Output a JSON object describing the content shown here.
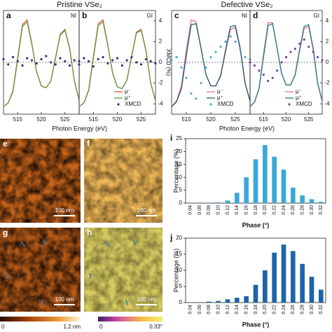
{
  "groups": [
    {
      "title": "Pristine VSe₂",
      "x_label": "Photon Energy (eV)",
      "y2_label": "XMCD (%)"
    },
    {
      "title": "Defective VSe₂",
      "x_label": "Photon Energy (eV)"
    }
  ],
  "chart_data": [
    {
      "type": "line",
      "label": "a",
      "tag": "NI",
      "x": [
        512,
        513,
        514,
        515,
        516,
        517,
        518,
        519,
        520,
        521,
        522,
        523,
        524,
        525,
        526,
        527,
        528
      ],
      "xlim": [
        512,
        528
      ],
      "xticks": [
        515,
        520,
        525
      ],
      "ylim": [
        0,
        1.1
      ],
      "y2lim": [
        -5,
        5
      ],
      "series": [
        {
          "color": "#e8553a",
          "values": [
            0.08,
            0.12,
            0.25,
            0.6,
            0.95,
            1.0,
            0.75,
            0.45,
            0.3,
            0.28,
            0.35,
            0.6,
            0.85,
            0.9,
            0.7,
            0.35,
            0.15
          ]
        },
        {
          "color": "#5a9e3a",
          "values": [
            0.08,
            0.12,
            0.24,
            0.58,
            0.93,
            0.98,
            0.74,
            0.45,
            0.3,
            0.28,
            0.35,
            0.59,
            0.84,
            0.89,
            0.69,
            0.35,
            0.15
          ]
        },
        {
          "color": "#2b2f7a",
          "axis": "y2",
          "values": [
            0.3,
            -0.2,
            0.5,
            0.1,
            -0.3,
            0.4,
            0.2,
            -0.1,
            0.3,
            0.6,
            0.0,
            -0.2,
            0.4,
            0.1,
            -0.3,
            0.2,
            0.1
          ]
        }
      ]
    },
    {
      "type": "line",
      "label": "b",
      "tag": "GI",
      "x": [
        512,
        513,
        514,
        515,
        516,
        517,
        518,
        519,
        520,
        521,
        522,
        523,
        524,
        525,
        526,
        527,
        528
      ],
      "xlim": [
        512,
        528
      ],
      "xticks": [
        515,
        520,
        525
      ],
      "ylim": [
        0,
        1.1
      ],
      "y2lim": [
        -5,
        5
      ],
      "y2ticks": [
        -4,
        -2,
        0,
        2,
        4
      ],
      "series": [
        {
          "name": "μ⁻",
          "color": "#e8553a",
          "values": [
            0.08,
            0.12,
            0.26,
            0.62,
            0.96,
            1.0,
            0.74,
            0.44,
            0.29,
            0.27,
            0.36,
            0.62,
            0.87,
            0.9,
            0.68,
            0.33,
            0.14
          ]
        },
        {
          "name": "μ⁺",
          "color": "#5a9e3a",
          "values": [
            0.08,
            0.12,
            0.25,
            0.6,
            0.94,
            0.98,
            0.73,
            0.44,
            0.29,
            0.27,
            0.36,
            0.61,
            0.86,
            0.89,
            0.67,
            0.33,
            0.14
          ]
        },
        {
          "name": "XMCD",
          "color": "#2b2f7a",
          "axis": "y2",
          "values": [
            -0.2,
            0.4,
            0.1,
            -0.4,
            0.3,
            0.5,
            -0.1,
            0.2,
            0.4,
            -0.3,
            0.2,
            0.5,
            0.0,
            -0.2,
            0.3,
            0.1,
            -0.1
          ]
        }
      ]
    },
    {
      "type": "line",
      "label": "c",
      "tag": "NI",
      "x": [
        512,
        513,
        514,
        515,
        516,
        517,
        518,
        519,
        520,
        521,
        522,
        523,
        524,
        525,
        526,
        527,
        528
      ],
      "xlim": [
        512,
        528
      ],
      "xticks": [
        515,
        520,
        525
      ],
      "ylim": [
        0,
        1.1
      ],
      "y2lim": [
        -5,
        5
      ],
      "series": [
        {
          "name": "μ⁻",
          "color": "#e86fa8",
          "values": [
            0.08,
            0.14,
            0.3,
            0.68,
            1.0,
            0.98,
            0.7,
            0.42,
            0.3,
            0.3,
            0.4,
            0.66,
            0.9,
            0.92,
            0.68,
            0.32,
            0.14
          ]
        },
        {
          "name": "μ⁺",
          "color": "#1f5f63",
          "values": [
            0.08,
            0.13,
            0.27,
            0.62,
            0.95,
            0.96,
            0.7,
            0.42,
            0.3,
            0.3,
            0.41,
            0.68,
            0.93,
            0.94,
            0.7,
            0.33,
            0.14
          ]
        },
        {
          "name": "XMCD",
          "color": "#4aa8d8",
          "axis": "y2",
          "values": [
            0.2,
            0.5,
            -0.5,
            -1.5,
            -3,
            -3.5,
            -2,
            -0.5,
            0.5,
            1,
            1.5,
            2,
            2.5,
            2,
            1.2,
            0.5,
            0.3
          ]
        }
      ]
    },
    {
      "type": "line",
      "label": "d",
      "tag": "GI",
      "x": [
        512,
        513,
        514,
        515,
        516,
        517,
        518,
        519,
        520,
        521,
        522,
        523,
        524,
        525,
        526,
        527,
        528
      ],
      "xlim": [
        512,
        528
      ],
      "xticks": [
        515,
        520,
        525
      ],
      "ylim": [
        0,
        1.1
      ],
      "y2lim": [
        -5,
        5
      ],
      "y2ticks": [
        -4,
        -2,
        0,
        2,
        4
      ],
      "series": [
        {
          "name": "μ⁻",
          "color": "#e86fa8",
          "values": [
            0.08,
            0.13,
            0.28,
            0.64,
            0.97,
            0.97,
            0.7,
            0.43,
            0.31,
            0.31,
            0.41,
            0.67,
            0.91,
            0.93,
            0.68,
            0.32,
            0.14
          ]
        },
        {
          "name": "μ⁺",
          "color": "#1f7f80",
          "values": [
            0.08,
            0.13,
            0.27,
            0.61,
            0.94,
            0.96,
            0.7,
            0.43,
            0.31,
            0.31,
            0.42,
            0.69,
            0.93,
            0.95,
            0.7,
            0.33,
            0.14
          ]
        },
        {
          "name": "XMCD",
          "color": "#7a3fa0",
          "axis": "y2",
          "values": [
            0,
            -0.3,
            -0.8,
            -1.2,
            -1.8,
            -1.5,
            -0.8,
            0,
            0.5,
            1,
            1.3,
            1.8,
            2.2,
            1.5,
            1,
            0.5,
            0.2
          ]
        }
      ]
    },
    {
      "type": "bar",
      "label": "i",
      "color": "#3aa9d6",
      "x_label": "Phase (°)",
      "y_label": "Percentage (%)",
      "categories": [
        "0.04",
        "0.06",
        "0.08",
        "0.10",
        "0.12",
        "0.14",
        "0.16",
        "0.18",
        "0.20",
        "0.22",
        "0.24",
        "0.26",
        "0.28",
        "0.30",
        "0.32"
      ],
      "values": [
        0,
        0,
        0,
        0.3,
        1,
        4,
        10,
        17,
        22.5,
        18,
        13,
        6,
        3,
        1.5,
        0.5
      ],
      "ylim": [
        0,
        25
      ],
      "yticks": [
        0,
        5,
        10,
        15,
        20,
        25
      ]
    },
    {
      "type": "bar",
      "label": "j",
      "color": "#1f64a8",
      "x_label": "Phase (°)",
      "y_label": "Percentage (%)",
      "categories": [
        "0.04",
        "0.06",
        "0.08",
        "0.10",
        "0.12",
        "0.14",
        "0.16",
        "0.18",
        "0.20",
        "0.22",
        "0.24",
        "0.26",
        "0.28",
        "0.30",
        "0.32"
      ],
      "values": [
        0,
        0,
        0.3,
        0.5,
        1,
        1.5,
        2,
        5.5,
        10,
        15.5,
        18,
        16,
        12,
        8,
        4
      ],
      "ylim": [
        0,
        20
      ],
      "yticks": [
        0,
        5,
        10,
        15,
        20
      ]
    }
  ],
  "images": [
    {
      "label": "e",
      "scale": "100 nm"
    },
    {
      "label": "f",
      "scale": "100 nm"
    },
    {
      "label": "g",
      "scale": "100 nm"
    },
    {
      "label": "h",
      "scale": "100 nm"
    }
  ],
  "colorbars": [
    {
      "min": "0",
      "max": "1.2 nm"
    },
    {
      "min": "0",
      "max": "0.33°"
    }
  ]
}
